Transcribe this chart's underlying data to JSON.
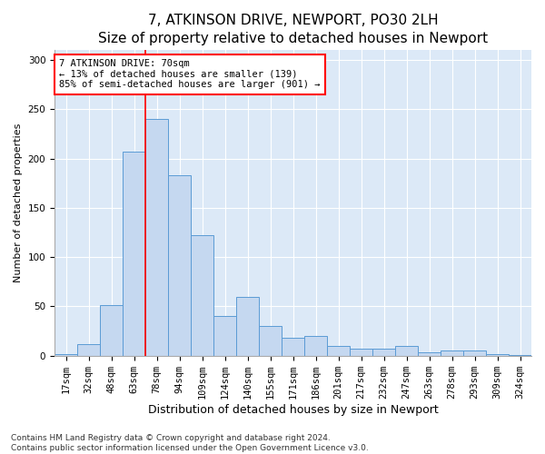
{
  "title": "7, ATKINSON DRIVE, NEWPORT, PO30 2LH",
  "subtitle": "Size of property relative to detached houses in Newport",
  "xlabel": "Distribution of detached houses by size in Newport",
  "ylabel": "Number of detached properties",
  "categories": [
    "17sqm",
    "32sqm",
    "48sqm",
    "63sqm",
    "78sqm",
    "94sqm",
    "109sqm",
    "124sqm",
    "140sqm",
    "155sqm",
    "171sqm",
    "186sqm",
    "201sqm",
    "217sqm",
    "232sqm",
    "247sqm",
    "263sqm",
    "278sqm",
    "293sqm",
    "309sqm",
    "324sqm"
  ],
  "values": [
    2,
    12,
    51,
    207,
    240,
    183,
    122,
    40,
    60,
    30,
    18,
    20,
    10,
    7,
    7,
    10,
    3,
    5,
    5,
    2,
    1
  ],
  "bar_color": "#c5d8f0",
  "bar_edge_color": "#5b9bd5",
  "vline_index": 3,
  "vline_color": "red",
  "annotation_line1": "7 ATKINSON DRIVE: 70sqm",
  "annotation_line2": "← 13% of detached houses are smaller (139)",
  "annotation_line3": "85% of semi-detached houses are larger (901) →",
  "annotation_box_color": "white",
  "annotation_box_edge_color": "red",
  "ylim": [
    0,
    310
  ],
  "yticks": [
    0,
    50,
    100,
    150,
    200,
    250,
    300
  ],
  "footnote": "Contains HM Land Registry data © Crown copyright and database right 2024.\nContains public sector information licensed under the Open Government Licence v3.0.",
  "background_color": "#dce9f7",
  "title_fontsize": 11,
  "xlabel_fontsize": 9,
  "ylabel_fontsize": 8,
  "tick_fontsize": 7.5,
  "annotation_fontsize": 7.5,
  "footnote_fontsize": 6.5
}
